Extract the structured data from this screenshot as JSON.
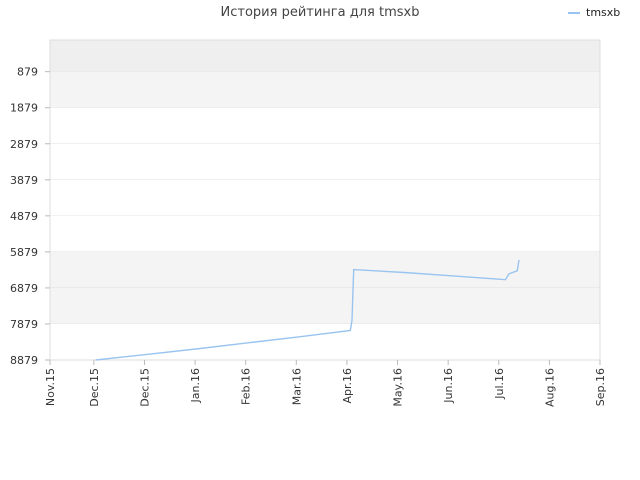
{
  "chart_data": {
    "type": "line",
    "title": "История рейтинга для tmsxb",
    "legend": {
      "position": "top-right"
    },
    "series": [
      {
        "name": "tmsxb",
        "color": "#99c4f0",
        "points": [
          {
            "x": "2015-12-01",
            "y": 8879
          },
          {
            "x": "2016-01-01",
            "y": 8720
          },
          {
            "x": "2016-02-01",
            "y": 8560
          },
          {
            "x": "2016-03-01",
            "y": 8400
          },
          {
            "x": "2016-04-01",
            "y": 8230
          },
          {
            "x": "2016-04-30",
            "y": 8060
          },
          {
            "x": "2016-05-01",
            "y": 7780
          },
          {
            "x": "2016-05-02",
            "y": 6370
          },
          {
            "x": "2016-06-01",
            "y": 6450
          },
          {
            "x": "2016-07-01",
            "y": 6550
          },
          {
            "x": "2016-07-31",
            "y": 6650
          },
          {
            "x": "2016-08-02",
            "y": 6490
          },
          {
            "x": "2016-08-07",
            "y": 6400
          },
          {
            "x": "2016-08-08",
            "y": 6100
          }
        ]
      }
    ],
    "x_ticks": [
      "Nov.15",
      "Dec.15",
      "Dec.15",
      "Jan.16",
      "Feb.16",
      "Mar.16",
      "Apr.16",
      "May.16",
      "Jun.16",
      "Jul.16",
      "Aug.16",
      "Sep.16"
    ],
    "x_tick_dates": [
      "2015-11-04",
      "2015-11-30",
      "2015-12-30",
      "2016-01-29",
      "2016-02-28",
      "2016-03-29",
      "2016-04-28",
      "2016-05-28",
      "2016-06-27",
      "2016-07-27",
      "2016-08-26",
      "2016-09-25"
    ],
    "xlim": [
      "2015-11-04",
      "2016-09-25"
    ],
    "y_ticks": [
      879,
      1879,
      2879,
      3879,
      4879,
      5879,
      6879,
      7879,
      8879
    ],
    "ylim": [
      0,
      8879
    ],
    "y_inverted": true,
    "grid": "horizontal bands",
    "band_colors": [
      "#efefef",
      "#f4f4f4",
      "#ffffff"
    ]
  }
}
